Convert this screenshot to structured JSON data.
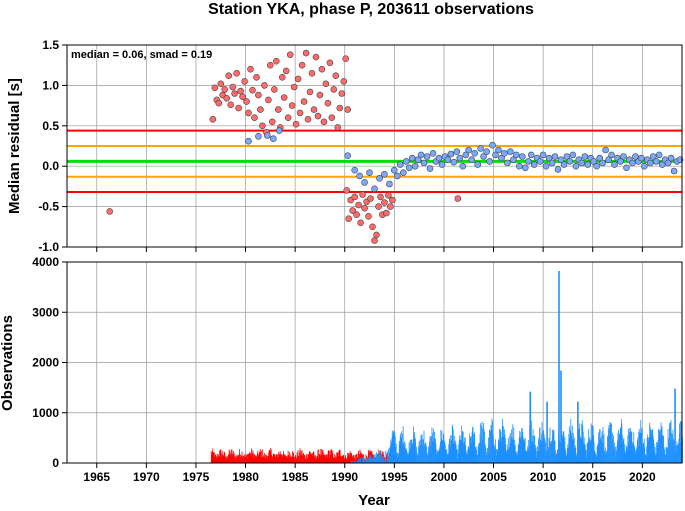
{
  "chart_data": [
    {
      "type": "scatter",
      "panel": "top",
      "title": "Station YKA, phase P, 203611 observations",
      "ylabel": "Median residual [s]",
      "xlim": [
        1962,
        2024
      ],
      "ylim": [
        -1.0,
        1.5
      ],
      "yticks": [
        "1.5",
        "1.0",
        "0.5",
        "0.0",
        "-0.5",
        "-1.0"
      ],
      "annotation": "median = 0.06, smad = 0.19",
      "grid": true,
      "reference_lines": [
        {
          "y": 0.06,
          "color": "#00e000"
        },
        {
          "y": 0.25,
          "color": "#ffa500"
        },
        {
          "y": -0.13,
          "color": "#ffa500"
        },
        {
          "y": 0.44,
          "color": "#ff0000"
        },
        {
          "y": -0.32,
          "color": "#ff0000"
        }
      ],
      "series": [
        {
          "color": "#ff6a6a",
          "points": [
            [
              1966.3,
              -0.56
            ],
            [
              1976.7,
              0.58
            ],
            [
              1976.9,
              0.97
            ],
            [
              1977.1,
              0.82
            ],
            [
              1977.3,
              0.78
            ],
            [
              1977.5,
              1.02
            ],
            [
              1977.7,
              0.88
            ],
            [
              1977.9,
              0.95
            ],
            [
              1978.1,
              0.84
            ],
            [
              1978.3,
              1.12
            ],
            [
              1978.5,
              0.76
            ],
            [
              1978.7,
              0.98
            ],
            [
              1978.9,
              0.9
            ],
            [
              1979.1,
              1.15
            ],
            [
              1979.3,
              0.72
            ],
            [
              1979.5,
              0.93
            ],
            [
              1979.7,
              0.86
            ],
            [
              1979.9,
              1.05
            ],
            [
              1980.1,
              0.8
            ],
            [
              1980.3,
              0.66
            ],
            [
              1980.5,
              1.2
            ],
            [
              1980.7,
              0.94
            ],
            [
              1980.9,
              0.6
            ],
            [
              1981.1,
              1.1
            ],
            [
              1981.3,
              0.88
            ],
            [
              1981.5,
              0.7
            ],
            [
              1981.7,
              0.5
            ],
            [
              1981.9,
              1.0
            ],
            [
              1982.1,
              0.42
            ],
            [
              1982.3,
              0.82
            ],
            [
              1982.5,
              1.25
            ],
            [
              1982.7,
              0.55
            ],
            [
              1982.9,
              0.95
            ],
            [
              1983.1,
              1.3
            ],
            [
              1983.3,
              0.7
            ],
            [
              1983.5,
              0.48
            ],
            [
              1983.7,
              1.1
            ],
            [
              1983.9,
              0.85
            ],
            [
              1984.1,
              1.18
            ],
            [
              1984.3,
              0.6
            ],
            [
              1984.5,
              1.38
            ],
            [
              1984.7,
              0.75
            ],
            [
              1984.9,
              0.98
            ],
            [
              1985.1,
              0.52
            ],
            [
              1985.3,
              1.08
            ],
            [
              1985.5,
              0.66
            ],
            [
              1985.7,
              1.25
            ],
            [
              1985.9,
              0.8
            ],
            [
              1986.1,
              1.4
            ],
            [
              1986.3,
              0.58
            ],
            [
              1986.5,
              0.92
            ],
            [
              1986.7,
              1.15
            ],
            [
              1986.9,
              0.7
            ],
            [
              1987.1,
              1.35
            ],
            [
              1987.3,
              0.62
            ],
            [
              1987.5,
              0.88
            ],
            [
              1987.7,
              1.2
            ],
            [
              1987.9,
              0.55
            ],
            [
              1988.1,
              1.02
            ],
            [
              1988.3,
              0.78
            ],
            [
              1988.5,
              1.28
            ],
            [
              1988.7,
              0.6
            ],
            [
              1988.9,
              0.95
            ],
            [
              1989.1,
              1.12
            ],
            [
              1989.3,
              0.48
            ],
            [
              1989.5,
              0.72
            ],
            [
              1989.7,
              0.9
            ],
            [
              1989.9,
              1.05
            ],
            [
              1990.1,
              1.33
            ],
            [
              1990.3,
              0.7
            ],
            [
              1990.2,
              -0.3
            ],
            [
              1990.4,
              -0.65
            ],
            [
              1990.6,
              -0.42
            ],
            [
              1990.8,
              -0.55
            ],
            [
              1991.0,
              -0.38
            ],
            [
              1991.2,
              -0.6
            ],
            [
              1991.4,
              -0.48
            ],
            [
              1991.6,
              -0.7
            ],
            [
              1991.8,
              -0.35
            ],
            [
              1992.0,
              -0.52
            ],
            [
              1992.2,
              -0.44
            ],
            [
              1992.4,
              -0.62
            ],
            [
              1992.6,
              -0.4
            ],
            [
              1992.8,
              -0.75
            ],
            [
              1993.0,
              -0.92
            ],
            [
              1993.2,
              -0.85
            ],
            [
              1993.4,
              -0.5
            ],
            [
              1993.6,
              -0.38
            ],
            [
              1993.8,
              -0.6
            ],
            [
              1994.0,
              -0.45
            ],
            [
              1994.2,
              -0.58
            ],
            [
              1994.4,
              -0.36
            ],
            [
              1994.6,
              -0.5
            ],
            [
              1994.8,
              -0.42
            ],
            [
              2001.4,
              -0.4
            ]
          ]
        },
        {
          "color": "#7aa8ff",
          "points": [
            [
              1980.3,
              0.31
            ],
            [
              1981.3,
              0.37
            ],
            [
              1982.2,
              0.38
            ],
            [
              1982.8,
              0.34
            ],
            [
              1983.4,
              0.44
            ],
            [
              1990.3,
              0.13
            ],
            [
              1991.0,
              -0.05
            ],
            [
              1991.5,
              -0.12
            ],
            [
              1992.0,
              -0.2
            ],
            [
              1992.5,
              -0.08
            ],
            [
              1993.0,
              -0.28
            ],
            [
              1993.5,
              -0.15
            ],
            [
              1994.0,
              -0.1
            ],
            [
              1994.5,
              -0.22
            ],
            [
              1995.0,
              -0.05
            ],
            [
              1995.3,
              -0.12
            ],
            [
              1995.6,
              0.02
            ],
            [
              1995.9,
              -0.08
            ],
            [
              1996.2,
              0.06
            ],
            [
              1996.5,
              -0.02
            ],
            [
              1996.8,
              0.1
            ],
            [
              1997.1,
              0.0
            ],
            [
              1997.4,
              0.08
            ],
            [
              1997.7,
              0.14
            ],
            [
              1998.0,
              0.04
            ],
            [
              1998.3,
              0.12
            ],
            [
              1998.6,
              -0.03
            ],
            [
              1998.9,
              0.16
            ],
            [
              1999.2,
              0.06
            ],
            [
              1999.5,
              0.1
            ],
            [
              1999.8,
              0.02
            ],
            [
              2000.1,
              0.12
            ],
            [
              2000.4,
              0.08
            ],
            [
              2000.7,
              0.15
            ],
            [
              2001.0,
              0.05
            ],
            [
              2001.3,
              0.18
            ],
            [
              2001.6,
              0.1
            ],
            [
              2001.9,
              0.0
            ],
            [
              2002.2,
              0.14
            ],
            [
              2002.5,
              0.2
            ],
            [
              2002.8,
              0.08
            ],
            [
              2003.1,
              0.16
            ],
            [
              2003.4,
              0.02
            ],
            [
              2003.7,
              0.22
            ],
            [
              2004.0,
              0.12
            ],
            [
              2004.3,
              0.18
            ],
            [
              2004.6,
              0.06
            ],
            [
              2004.9,
              0.26
            ],
            [
              2005.2,
              0.14
            ],
            [
              2005.5,
              0.2
            ],
            [
              2005.8,
              0.1
            ],
            [
              2006.1,
              0.16
            ],
            [
              2006.4,
              0.04
            ],
            [
              2006.7,
              0.18
            ],
            [
              2007.0,
              0.08
            ],
            [
              2007.3,
              0.14
            ],
            [
              2007.6,
              0.0
            ],
            [
              2007.9,
              0.12
            ],
            [
              2008.2,
              -0.02
            ],
            [
              2008.5,
              0.06
            ],
            [
              2008.8,
              0.14
            ],
            [
              2009.1,
              0.02
            ],
            [
              2009.4,
              0.1
            ],
            [
              2009.7,
              0.06
            ],
            [
              2010.0,
              0.14
            ],
            [
              2010.3,
              0.0
            ],
            [
              2010.6,
              0.1
            ],
            [
              2010.9,
              0.04
            ],
            [
              2011.2,
              0.12
            ],
            [
              2011.5,
              -0.04
            ],
            [
              2011.8,
              0.08
            ],
            [
              2012.1,
              0.02
            ],
            [
              2012.4,
              0.12
            ],
            [
              2012.7,
              0.06
            ],
            [
              2013.0,
              0.14
            ],
            [
              2013.3,
              0.0
            ],
            [
              2013.6,
              0.08
            ],
            [
              2013.9,
              0.04
            ],
            [
              2014.2,
              0.12
            ],
            [
              2014.5,
              0.02
            ],
            [
              2014.8,
              0.1
            ],
            [
              2015.1,
              0.06
            ],
            [
              2015.4,
              0.0
            ],
            [
              2015.7,
              0.1
            ],
            [
              2016.0,
              0.04
            ],
            [
              2016.3,
              0.2
            ],
            [
              2016.6,
              0.08
            ],
            [
              2016.9,
              0.14
            ],
            [
              2017.2,
              0.02
            ],
            [
              2017.5,
              0.1
            ],
            [
              2017.8,
              0.06
            ],
            [
              2018.1,
              0.12
            ],
            [
              2018.4,
              -0.02
            ],
            [
              2018.7,
              0.08
            ],
            [
              2019.0,
              0.04
            ],
            [
              2019.3,
              0.12
            ],
            [
              2019.6,
              0.06
            ],
            [
              2019.9,
              0.1
            ],
            [
              2020.2,
              0.0
            ],
            [
              2020.5,
              0.08
            ],
            [
              2020.8,
              0.04
            ],
            [
              2021.1,
              0.12
            ],
            [
              2021.4,
              0.06
            ],
            [
              2021.7,
              0.14
            ],
            [
              2022.0,
              0.02
            ],
            [
              2022.3,
              0.08
            ],
            [
              2022.6,
              0.04
            ],
            [
              2022.9,
              0.1
            ],
            [
              2023.2,
              -0.06
            ],
            [
              2023.5,
              0.06
            ],
            [
              2023.8,
              0.08
            ]
          ]
        }
      ]
    },
    {
      "type": "bar",
      "panel": "bottom",
      "xlabel": "Year",
      "ylabel": "Observations",
      "xlim": [
        1962,
        2024
      ],
      "ylim": [
        0,
        4000
      ],
      "xticks": [
        "1965",
        "1970",
        "1975",
        "1980",
        "1985",
        "1990",
        "1995",
        "2000",
        "2005",
        "2010",
        "2015",
        "2020"
      ],
      "yticks": [
        "4000",
        "3000",
        "2000",
        "1000",
        "0"
      ],
      "grid": true,
      "series": [
        {
          "color": "#ff0000",
          "years": [
            1976.5,
            1994.9
          ],
          "typical_max": 300
        },
        {
          "color": "#1e90ff",
          "years": [
            1990.0,
            2024.0
          ],
          "typical_max": 900
        }
      ],
      "peaks": [
        {
          "x": 2008.7,
          "y": 1420,
          "series": 1
        },
        {
          "x": 2010.4,
          "y": 1220,
          "series": 1
        },
        {
          "x": 2011.6,
          "y": 3820,
          "series": 1
        },
        {
          "x": 2011.8,
          "y": 1840,
          "series": 1
        },
        {
          "x": 2013.5,
          "y": 1220,
          "series": 1
        },
        {
          "x": 2023.3,
          "y": 1480,
          "series": 1
        }
      ]
    }
  ]
}
